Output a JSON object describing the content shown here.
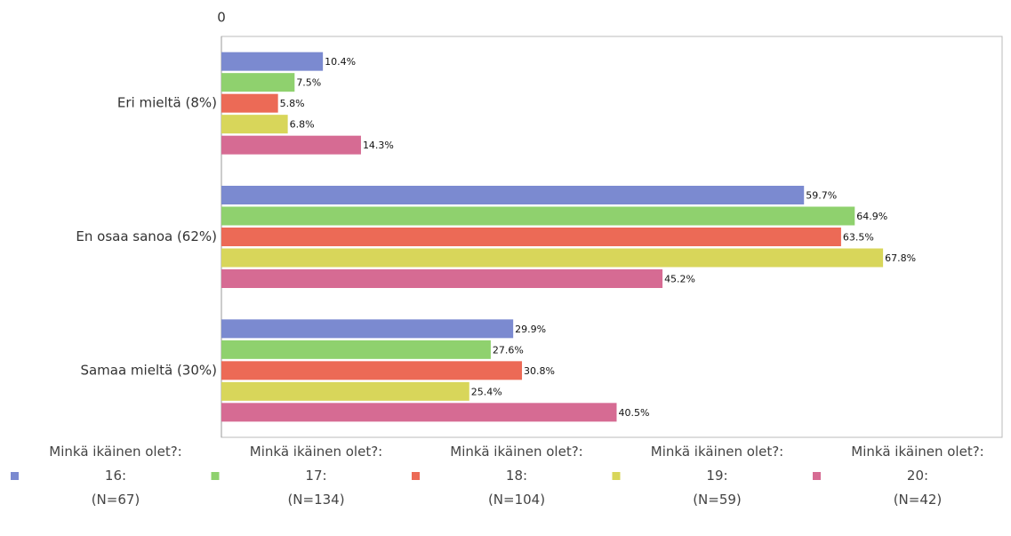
{
  "chart_data": {
    "type": "bar",
    "orientation": "horizontal",
    "categories": [
      "Eri mieltä (8%)",
      "En osaa sanoa (62%)",
      "Samaa mieltä (30%)"
    ],
    "series": [
      {
        "name": "Minkä ikäinen olet?:\n16:\n(N=67)",
        "color": "#7b8ad0",
        "values": [
          10.4,
          59.7,
          29.9
        ],
        "value_labels": [
          "10.4%",
          "59.7%",
          "29.9%"
        ]
      },
      {
        "name": "Minkä ikäinen olet?:\n17:\n(N=134)",
        "color": "#8fd16e",
        "values": [
          7.5,
          64.9,
          27.6
        ],
        "value_labels": [
          "7.5%",
          "64.9%",
          "27.6%"
        ]
      },
      {
        "name": "Minkä ikäinen olet?:\n18:\n(N=104)",
        "color": "#ec6a56",
        "values": [
          5.8,
          63.5,
          30.8
        ],
        "value_labels": [
          "5.8%",
          "63.5%",
          "30.8%"
        ]
      },
      {
        "name": "Minkä ikäinen olet?:\n19:\n(N=59)",
        "color": "#d8d65a",
        "values": [
          6.8,
          67.8,
          25.4
        ],
        "value_labels": [
          "6.8%",
          "67.8%",
          "25.4%"
        ]
      },
      {
        "name": "Minkä ikäinen olet?:\n20:\n(N=42)",
        "color": "#d66b93",
        "values": [
          14.3,
          45.2,
          40.5
        ],
        "value_labels": [
          "14.3%",
          "45.2%",
          "40.5%"
        ]
      }
    ],
    "xlim": [
      0,
      80
    ],
    "xticks": [
      0
    ],
    "legend": "bottom"
  }
}
